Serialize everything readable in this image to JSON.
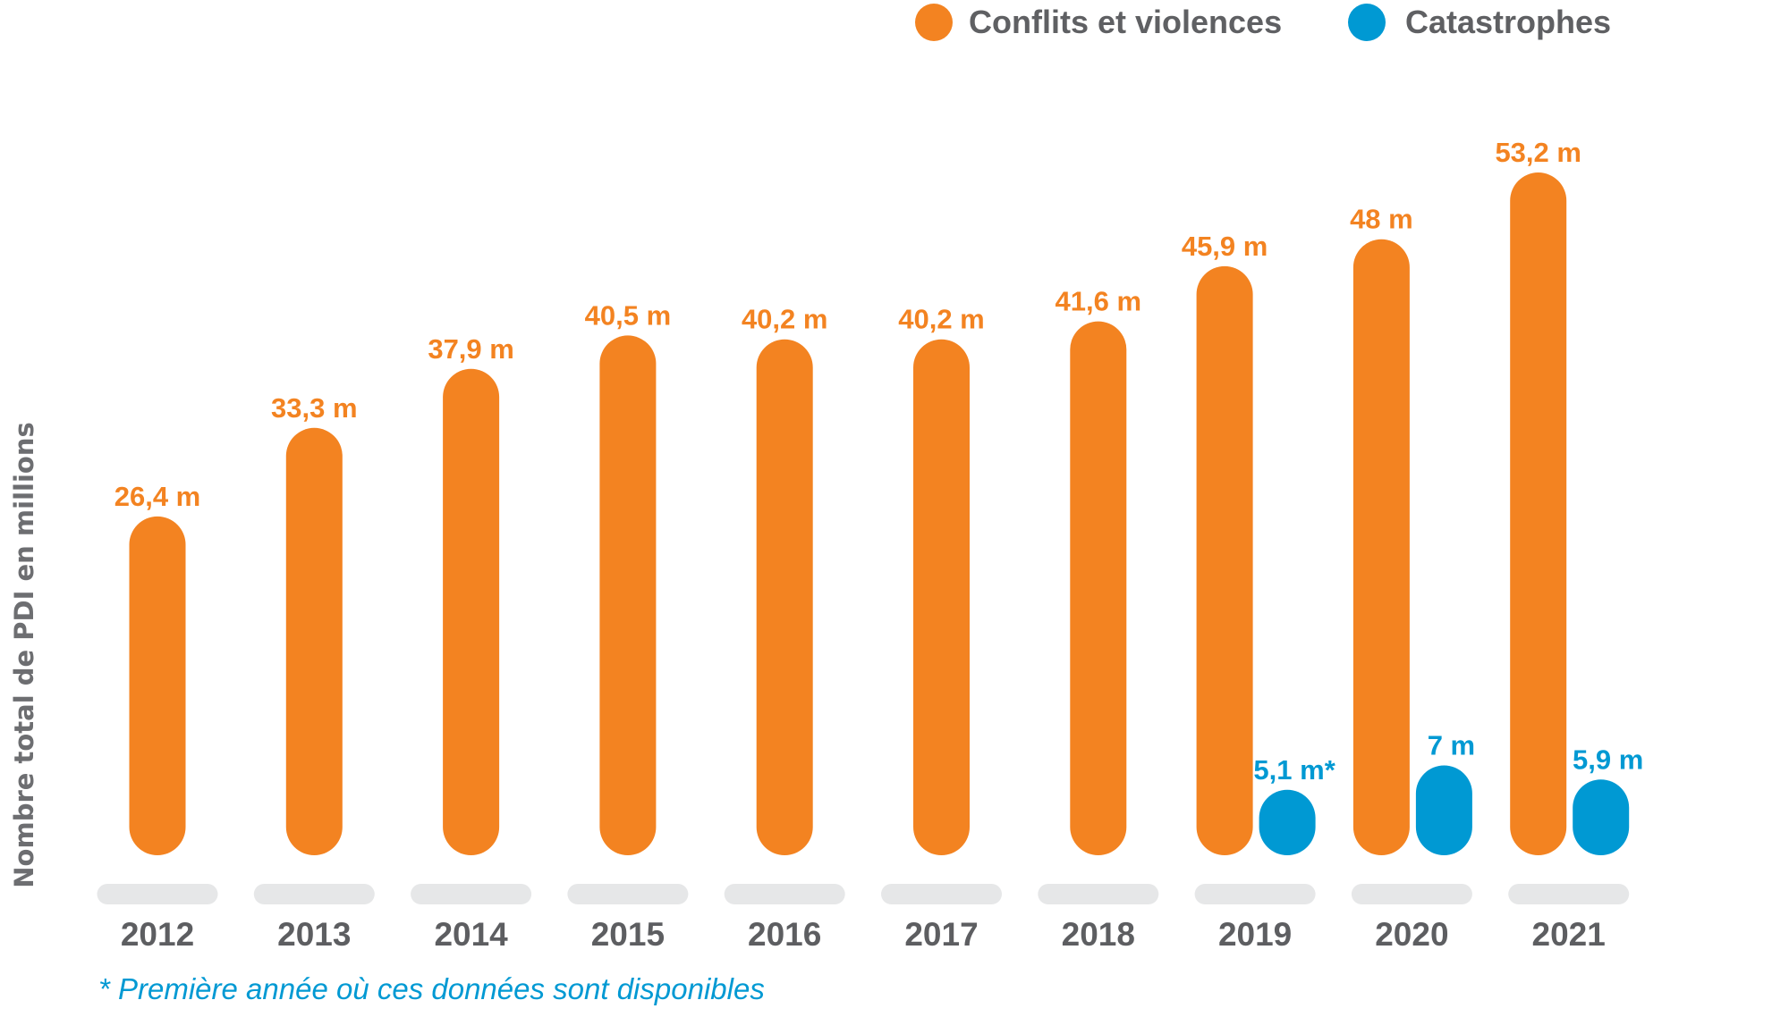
{
  "chart_data": {
    "type": "bar",
    "title": "",
    "xlabel": "",
    "ylabel": "Nombre total de PDI en millions",
    "categories": [
      "2012",
      "2013",
      "2014",
      "2015",
      "2016",
      "2017",
      "2018",
      "2019",
      "2020",
      "2021"
    ],
    "series": [
      {
        "name": "Conflits et violences",
        "color": "#f38321",
        "values": [
          26.4,
          33.3,
          37.9,
          40.5,
          40.2,
          40.2,
          41.6,
          45.9,
          48,
          53.2
        ],
        "labels": [
          "26,4 m",
          "33,3 m",
          "37,9 m",
          "40,5 m",
          "40,2 m",
          "40,2 m",
          "41,6 m",
          "45,9 m",
          "48 m",
          "53,2 m"
        ]
      },
      {
        "name": "Catastrophes",
        "color": "#0099d3",
        "values": [
          null,
          null,
          null,
          null,
          null,
          null,
          null,
          5.1,
          7,
          5.9
        ],
        "labels": [
          null,
          null,
          null,
          null,
          null,
          null,
          null,
          "5,1 m*",
          "7 m",
          "5,9 m"
        ]
      }
    ],
    "ylim": [
      0,
      55
    ],
    "grid": false,
    "legend": {
      "position": "top-right"
    },
    "footnote": "* Première année où ces données sont disponibles"
  }
}
